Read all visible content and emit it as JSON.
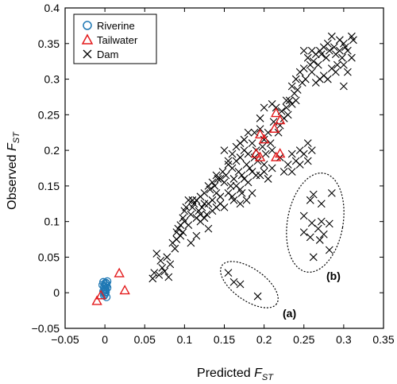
{
  "chart_data": {
    "type": "scatter",
    "xlabel": "Predicted",
    "xlabel_sub": "ST",
    "xlabel_var": "F",
    "ylabel": "Observed",
    "ylabel_sub": "ST",
    "ylabel_var": "F",
    "xlim": [
      -0.05,
      0.35
    ],
    "ylim": [
      -0.05,
      0.4
    ],
    "xticks": [
      "−0.05",
      "0",
      "0.05",
      "0.1",
      "0.15",
      "0.2",
      "0.25",
      "0.3",
      "0.35"
    ],
    "yticks": [
      "−0.05",
      "0",
      "0.05",
      "0.1",
      "0.15",
      "0.2",
      "0.25",
      "0.3",
      "0.35",
      "0.4"
    ],
    "xtick_values": [
      -0.05,
      0,
      0.05,
      0.1,
      0.15,
      0.2,
      0.25,
      0.3,
      0.35
    ],
    "ytick_values": [
      -0.05,
      0,
      0.05,
      0.1,
      0.15,
      0.2,
      0.25,
      0.3,
      0.35,
      0.4
    ],
    "legend_position": "top-left",
    "grid": false,
    "colors": {
      "riverine": "#1f78b4",
      "tailwater": "#e31a1c",
      "dam": "#000000"
    },
    "series": [
      {
        "name": "Riverine",
        "marker": "circle",
        "points": [
          [
            0.0,
            0.0
          ],
          [
            -0.002,
            0.002
          ],
          [
            0.001,
            0.004
          ],
          [
            0.0,
            0.006
          ],
          [
            -0.001,
            0.008
          ],
          [
            0.002,
            0.01
          ],
          [
            0.0,
            0.012
          ],
          [
            0.001,
            0.014
          ],
          [
            -0.002,
            0.015
          ],
          [
            0.003,
            0.016
          ],
          [
            0.0,
            -0.002
          ],
          [
            -0.001,
            -0.004
          ],
          [
            0.002,
            -0.006
          ],
          [
            0.0,
            0.003
          ],
          [
            0.003,
            0.007
          ],
          [
            -0.003,
            0.011
          ],
          [
            0.002,
            0.013
          ],
          [
            0.001,
            0.001
          ]
        ]
      },
      {
        "name": "Tailwater",
        "marker": "triangle",
        "points": [
          [
            -0.01,
            -0.012
          ],
          [
            -0.005,
            -0.004
          ],
          [
            0.018,
            0.027
          ],
          [
            0.025,
            0.003
          ],
          [
            0.195,
            0.222
          ],
          [
            0.2,
            0.215
          ],
          [
            0.19,
            0.195
          ],
          [
            0.195,
            0.19
          ],
          [
            0.215,
            0.252
          ],
          [
            0.22,
            0.242
          ],
          [
            0.213,
            0.23
          ],
          [
            0.22,
            0.195
          ],
          [
            0.215,
            0.19
          ]
        ]
      },
      {
        "name": "Dam",
        "marker": "x",
        "points": [
          [
            0.06,
            0.02
          ],
          [
            0.062,
            0.028
          ],
          [
            0.068,
            0.025
          ],
          [
            0.072,
            0.035
          ],
          [
            0.075,
            0.03
          ],
          [
            0.08,
            0.022
          ],
          [
            0.082,
            0.04
          ],
          [
            0.065,
            0.055
          ],
          [
            0.07,
            0.045
          ],
          [
            0.078,
            0.05
          ],
          [
            0.088,
            0.062
          ],
          [
            0.09,
            0.075
          ],
          [
            0.095,
            0.08
          ],
          [
            0.092,
            0.09
          ],
          [
            0.098,
            0.085
          ],
          [
            0.1,
            0.1
          ],
          [
            0.102,
            0.12
          ],
          [
            0.105,
            0.095
          ],
          [
            0.108,
            0.11
          ],
          [
            0.11,
            0.13
          ],
          [
            0.112,
            0.125
          ],
          [
            0.115,
            0.105
          ],
          [
            0.118,
            0.115
          ],
          [
            0.12,
            0.135
          ],
          [
            0.122,
            0.12
          ],
          [
            0.125,
            0.14
          ],
          [
            0.128,
            0.11
          ],
          [
            0.13,
            0.125
          ],
          [
            0.132,
            0.145
          ],
          [
            0.135,
            0.13
          ],
          [
            0.138,
            0.15
          ],
          [
            0.14,
            0.14
          ],
          [
            0.142,
            0.16
          ],
          [
            0.145,
            0.135
          ],
          [
            0.148,
            0.17
          ],
          [
            0.15,
            0.155
          ],
          [
            0.152,
            0.165
          ],
          [
            0.155,
            0.18
          ],
          [
            0.158,
            0.15
          ],
          [
            0.16,
            0.175
          ],
          [
            0.162,
            0.16
          ],
          [
            0.165,
            0.185
          ],
          [
            0.168,
            0.17
          ],
          [
            0.17,
            0.19
          ],
          [
            0.172,
            0.165
          ],
          [
            0.175,
            0.2
          ],
          [
            0.178,
            0.18
          ],
          [
            0.18,
            0.195
          ],
          [
            0.182,
            0.175
          ],
          [
            0.185,
            0.21
          ],
          [
            0.188,
            0.19
          ],
          [
            0.19,
            0.2
          ],
          [
            0.192,
            0.185
          ],
          [
            0.195,
            0.23
          ],
          [
            0.198,
            0.205
          ],
          [
            0.2,
            0.215
          ],
          [
            0.202,
            0.195
          ],
          [
            0.205,
            0.225
          ],
          [
            0.208,
            0.21
          ],
          [
            0.21,
            0.2
          ],
          [
            0.212,
            0.24
          ],
          [
            0.215,
            0.26
          ],
          [
            0.218,
            0.225
          ],
          [
            0.22,
            0.235
          ],
          [
            0.225,
            0.245
          ],
          [
            0.228,
            0.26
          ],
          [
            0.23,
            0.25
          ],
          [
            0.232,
            0.27
          ],
          [
            0.235,
            0.265
          ],
          [
            0.238,
            0.28
          ],
          [
            0.24,
            0.3
          ],
          [
            0.242,
            0.285
          ],
          [
            0.245,
            0.31
          ],
          [
            0.248,
            0.295
          ],
          [
            0.25,
            0.315
          ],
          [
            0.252,
            0.3
          ],
          [
            0.255,
            0.33
          ],
          [
            0.258,
            0.32
          ],
          [
            0.26,
            0.34
          ],
          [
            0.262,
            0.325
          ],
          [
            0.265,
            0.335
          ],
          [
            0.268,
            0.32
          ],
          [
            0.27,
            0.34
          ],
          [
            0.272,
            0.335
          ],
          [
            0.275,
            0.345
          ],
          [
            0.278,
            0.33
          ],
          [
            0.28,
            0.35
          ],
          [
            0.282,
            0.34
          ],
          [
            0.285,
            0.315
          ],
          [
            0.288,
            0.345
          ],
          [
            0.29,
            0.335
          ],
          [
            0.292,
            0.32
          ],
          [
            0.295,
            0.34
          ],
          [
            0.298,
            0.33
          ],
          [
            0.3,
            0.35
          ],
          [
            0.302,
            0.345
          ],
          [
            0.305,
            0.34
          ],
          [
            0.31,
            0.36
          ],
          [
            0.312,
            0.355
          ],
          [
            0.25,
            0.34
          ],
          [
            0.26,
            0.31
          ],
          [
            0.27,
            0.3
          ],
          [
            0.24,
            0.27
          ],
          [
            0.235,
            0.29
          ],
          [
            0.228,
            0.27
          ],
          [
            0.222,
            0.255
          ],
          [
            0.21,
            0.265
          ],
          [
            0.2,
            0.26
          ],
          [
            0.195,
            0.245
          ],
          [
            0.188,
            0.225
          ],
          [
            0.18,
            0.225
          ],
          [
            0.175,
            0.215
          ],
          [
            0.17,
            0.21
          ],
          [
            0.165,
            0.205
          ],
          [
            0.16,
            0.195
          ],
          [
            0.155,
            0.185
          ],
          [
            0.15,
            0.2
          ],
          [
            0.145,
            0.16
          ],
          [
            0.14,
            0.165
          ],
          [
            0.135,
            0.155
          ],
          [
            0.13,
            0.15
          ],
          [
            0.125,
            0.125
          ],
          [
            0.12,
            0.11
          ],
          [
            0.115,
            0.13
          ],
          [
            0.11,
            0.12
          ],
          [
            0.105,
            0.13
          ],
          [
            0.1,
            0.115
          ],
          [
            0.098,
            0.105
          ],
          [
            0.095,
            0.095
          ],
          [
            0.09,
            0.085
          ],
          [
            0.085,
            0.07
          ],
          [
            0.15,
            0.12
          ],
          [
            0.155,
            0.14
          ],
          [
            0.16,
            0.135
          ],
          [
            0.165,
            0.15
          ],
          [
            0.17,
            0.145
          ],
          [
            0.175,
            0.16
          ],
          [
            0.18,
            0.155
          ],
          [
            0.185,
            0.17
          ],
          [
            0.19,
            0.165
          ],
          [
            0.2,
            0.18
          ],
          [
            0.21,
            0.175
          ],
          [
            0.22,
            0.19
          ],
          [
            0.23,
            0.18
          ],
          [
            0.235,
            0.195
          ],
          [
            0.24,
            0.185
          ],
          [
            0.245,
            0.2
          ],
          [
            0.25,
            0.195
          ],
          [
            0.255,
            0.21
          ],
          [
            0.26,
            0.2
          ],
          [
            0.225,
            0.17
          ],
          [
            0.235,
            0.17
          ],
          [
            0.245,
            0.18
          ],
          [
            0.255,
            0.185
          ],
          [
            0.205,
            0.16
          ],
          [
            0.2,
            0.17
          ],
          [
            0.195,
            0.165
          ],
          [
            0.185,
            0.14
          ],
          [
            0.178,
            0.13
          ],
          [
            0.17,
            0.125
          ],
          [
            0.12,
            0.1
          ],
          [
            0.13,
            0.09
          ],
          [
            0.14,
            0.12
          ],
          [
            0.115,
            0.08
          ],
          [
            0.108,
            0.07
          ],
          [
            0.125,
            0.105
          ],
          [
            0.135,
            0.115
          ],
          [
            0.145,
            0.125
          ],
          [
            0.162,
            0.13
          ],
          [
            0.172,
            0.14
          ],
          [
            0.28,
            0.3
          ],
          [
            0.29,
            0.31
          ],
          [
            0.3,
            0.32
          ],
          [
            0.275,
            0.305
          ],
          [
            0.265,
            0.295
          ],
          [
            0.3,
            0.29
          ],
          [
            0.305,
            0.31
          ],
          [
            0.31,
            0.33
          ],
          [
            0.295,
            0.355
          ],
          [
            0.285,
            0.36
          ],
          [
            0.155,
            0.028
          ],
          [
            0.162,
            0.015
          ],
          [
            0.17,
            0.012
          ],
          [
            0.192,
            -0.005
          ],
          [
            0.258,
            0.13
          ],
          [
            0.262,
            0.138
          ],
          [
            0.272,
            0.125
          ],
          [
            0.285,
            0.14
          ],
          [
            0.25,
            0.108
          ],
          [
            0.26,
            0.098
          ],
          [
            0.272,
            0.1
          ],
          [
            0.282,
            0.097
          ],
          [
            0.25,
            0.085
          ],
          [
            0.268,
            0.09
          ],
          [
            0.275,
            0.082
          ],
          [
            0.258,
            0.078
          ],
          [
            0.27,
            0.074
          ],
          [
            0.262,
            0.05
          ],
          [
            0.282,
            0.06
          ]
        ]
      }
    ],
    "annotations": [
      "(a)",
      "(b)"
    ]
  }
}
